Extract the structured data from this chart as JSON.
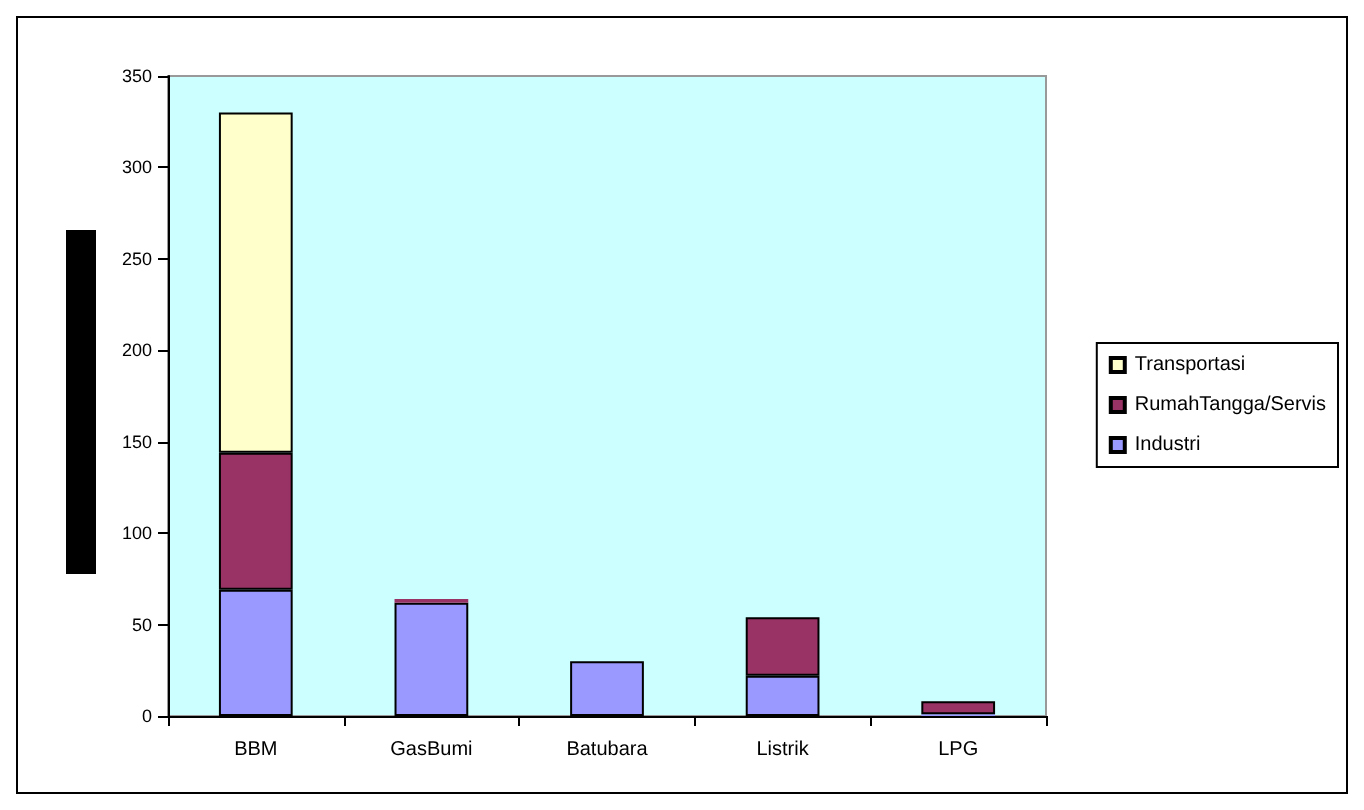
{
  "chart_data": {
    "type": "bar",
    "stacked": true,
    "categories": [
      "BBM",
      "GasBumi",
      "Batubara",
      "Listrik",
      "LPG"
    ],
    "series": [
      {
        "name": "Industri",
        "color": "#9999ff",
        "values": [
          69,
          62,
          30,
          22,
          1
        ]
      },
      {
        "name": "RumahTangga/Servis",
        "color": "#993366",
        "values": [
          75,
          2,
          null,
          32,
          7
        ]
      },
      {
        "name": "Transportasi",
        "color": "#ffffcc",
        "values": [
          186,
          null,
          null,
          null,
          null
        ]
      }
    ],
    "ylim": [
      0,
      350
    ],
    "yticks": [
      0,
      50,
      100,
      150,
      200,
      250,
      300,
      350
    ],
    "grid": false,
    "legend": "right"
  }
}
